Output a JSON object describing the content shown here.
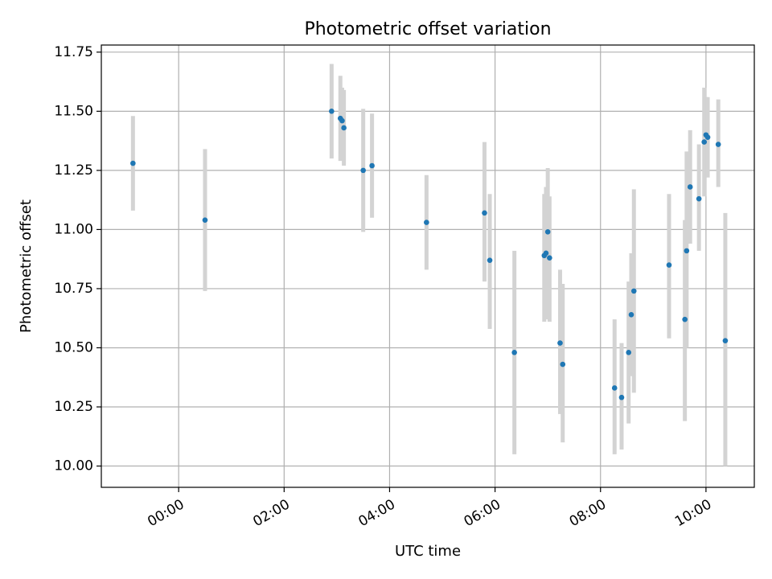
{
  "colors": {
    "points": "#1f77b4",
    "error_bars": "#d3d3d3",
    "grid": "#b0b0b0"
  },
  "chart_data": {
    "type": "scatter",
    "title": "Photometric offset variation",
    "xlabel": "UTC time",
    "ylabel": "Photometric offset",
    "x_unit": "UTC time (HH:MM)",
    "xlim": [
      "-01:28",
      "10:55"
    ],
    "ylim": [
      9.91,
      11.78
    ],
    "grid": true,
    "x_ticks": [
      "00:00",
      "02:00",
      "04:00",
      "06:00",
      "08:00",
      "10:00"
    ],
    "y_ticks": [
      "10.00",
      "10.25",
      "10.50",
      "10.75",
      "11.00",
      "11.25",
      "11.50",
      "11.75"
    ],
    "series": [
      {
        "marker": "point",
        "error_bars": true,
        "points": [
          {
            "x": "-00:52",
            "y": 11.28,
            "y_low": 11.08,
            "y_high": 11.48
          },
          {
            "x": "00:30",
            "y": 11.04,
            "y_low": 10.74,
            "y_high": 11.34
          },
          {
            "x": "02:54",
            "y": 11.5,
            "y_low": 11.3,
            "y_high": 11.7
          },
          {
            "x": "03:04",
            "y": 11.47,
            "y_low": 11.29,
            "y_high": 11.65
          },
          {
            "x": "03:06",
            "y": 11.46,
            "y_low": 11.32,
            "y_high": 11.6
          },
          {
            "x": "03:08",
            "y": 11.43,
            "y_low": 11.27,
            "y_high": 11.59
          },
          {
            "x": "03:30",
            "y": 11.25,
            "y_low": 10.99,
            "y_high": 11.51
          },
          {
            "x": "03:40",
            "y": 11.27,
            "y_low": 11.05,
            "y_high": 11.49
          },
          {
            "x": "04:42",
            "y": 11.03,
            "y_low": 10.83,
            "y_high": 11.23
          },
          {
            "x": "05:48",
            "y": 11.07,
            "y_low": 10.78,
            "y_high": 11.37
          },
          {
            "x": "05:54",
            "y": 10.87,
            "y_low": 10.58,
            "y_high": 11.15
          },
          {
            "x": "06:22",
            "y": 10.48,
            "y_low": 10.05,
            "y_high": 10.91
          },
          {
            "x": "06:56",
            "y": 10.89,
            "y_low": 10.61,
            "y_high": 11.15
          },
          {
            "x": "06:58",
            "y": 10.9,
            "y_low": 10.62,
            "y_high": 11.18
          },
          {
            "x": "07:00",
            "y": 10.99,
            "y_low": 10.72,
            "y_high": 11.26
          },
          {
            "x": "07:02",
            "y": 10.88,
            "y_low": 10.61,
            "y_high": 11.14
          },
          {
            "x": "07:14",
            "y": 10.52,
            "y_low": 10.22,
            "y_high": 10.83
          },
          {
            "x": "07:17",
            "y": 10.43,
            "y_low": 10.1,
            "y_high": 10.77
          },
          {
            "x": "08:16",
            "y": 10.33,
            "y_low": 10.05,
            "y_high": 10.62
          },
          {
            "x": "08:24",
            "y": 10.29,
            "y_low": 10.07,
            "y_high": 10.52
          },
          {
            "x": "08:32",
            "y": 10.48,
            "y_low": 10.18,
            "y_high": 10.78
          },
          {
            "x": "08:35",
            "y": 10.64,
            "y_low": 10.38,
            "y_high": 10.9
          },
          {
            "x": "08:38",
            "y": 10.74,
            "y_low": 10.31,
            "y_high": 11.17
          },
          {
            "x": "09:18",
            "y": 10.85,
            "y_low": 10.54,
            "y_high": 11.15
          },
          {
            "x": "09:36",
            "y": 10.62,
            "y_low": 10.19,
            "y_high": 11.04
          },
          {
            "x": "09:38",
            "y": 10.91,
            "y_low": 10.5,
            "y_high": 11.33
          },
          {
            "x": "09:42",
            "y": 11.18,
            "y_low": 10.94,
            "y_high": 11.42
          },
          {
            "x": "09:52",
            "y": 11.13,
            "y_low": 10.91,
            "y_high": 11.36
          },
          {
            "x": "09:58",
            "y": 11.37,
            "y_low": 11.14,
            "y_high": 11.6
          },
          {
            "x": "10:00",
            "y": 11.4,
            "y_low": 11.24,
            "y_high": 11.56
          },
          {
            "x": "10:02",
            "y": 11.39,
            "y_low": 11.22,
            "y_high": 11.56
          },
          {
            "x": "10:14",
            "y": 11.36,
            "y_low": 11.18,
            "y_high": 11.55
          },
          {
            "x": "10:22",
            "y": 10.53,
            "y_low": 10.0,
            "y_high": 11.07
          }
        ]
      }
    ]
  }
}
